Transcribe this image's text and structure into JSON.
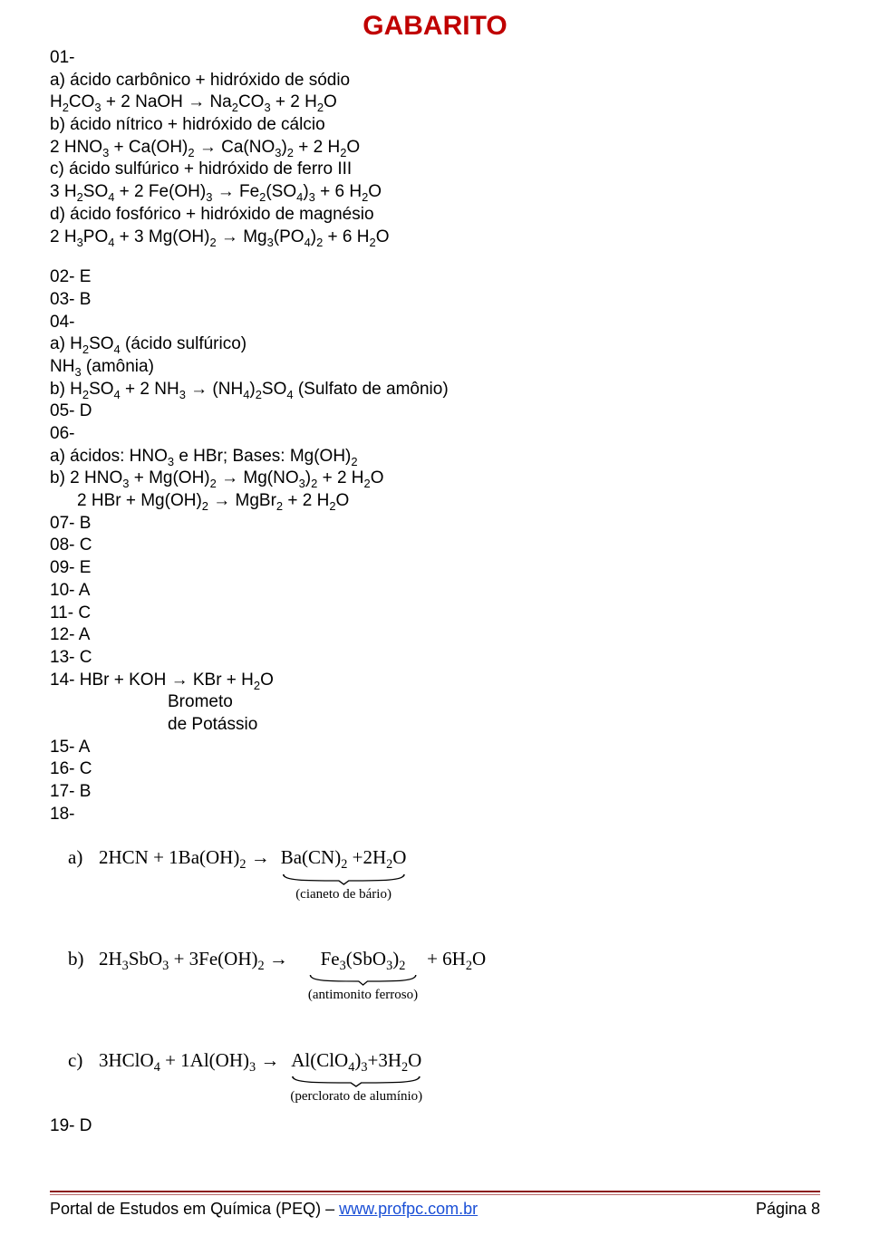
{
  "colors": {
    "title": "#c00000",
    "body_text": "#000000",
    "rule_top": "#8b1a1a",
    "rule_bottom": "#b86a6a",
    "link": "#1a4fd6",
    "background": "#ffffff"
  },
  "title": "GABARITO",
  "q01": {
    "num": "01-",
    "a_text": "a) ácido carbônico + hidróxido de sódio",
    "a_eq": "H₂CO₃ + 2 NaOH → Na₂CO₃ + 2 H₂O",
    "b_text": "b) ácido nítrico + hidróxido de cálcio",
    "b_eq": "2 HNO₃ + Ca(OH)₂ → Ca(NO₃)₂ + 2 H₂O",
    "c_text": "c) ácido sulfúrico + hidróxido de ferro III",
    "c_eq": "3 H₂SO₄ + 2 Fe(OH)₃ → Fe₂(SO₄)₃ + 6 H₂O",
    "d_text": "d) ácido fosfórico + hidróxido de magnésio",
    "d_eq": "2 H₃PO₄ + 3 Mg(OH)₂ → Mg₃(PO₄)₂ + 6 H₂O"
  },
  "q02": "02- E",
  "q03": "03- B",
  "q04": {
    "num": "04-",
    "a1": "a) H₂SO₄ (ácido sulfúrico)",
    "a2": "NH₃ (amônia)",
    "b": "b) H₂SO₄ + 2 NH₃ → (NH₄)₂SO₄ (Sulfato de amônio)"
  },
  "q05": "05- D",
  "q06": {
    "num": "06-",
    "a": "a) ácidos: HNO₃ e HBr; Bases: Mg(OH)₂",
    "b1": "b) 2 HNO₃ + Mg(OH)₂ → Mg(NO₃)₂ + 2 H₂O",
    "b2": "2 HBr + Mg(OH)₂ → MgBr₂ + 2 H₂O"
  },
  "q07": "07- B",
  "q08": "08- C",
  "q09": "09- E",
  "q10": "10- A",
  "q11": "11- C",
  "q12": "12- A",
  "q13": "13- C",
  "q14": {
    "line": "14- HBr + KOH → KBr + H₂O",
    "sub1": "Brometo",
    "sub2": "de Potássio"
  },
  "q15": "15- A",
  "q16": "16- C",
  "q17": "17- B",
  "q18": {
    "num": "18-",
    "a": {
      "label": "a)",
      "left": "2HCN + 1Ba(OH)₂ →",
      "product": "Ba(CN)₂ +2H₂O",
      "caption": "(cianeto de bário)",
      "tail": ""
    },
    "b": {
      "label": "b)",
      "left": "2H₃SbO₃ + 3Fe(OH)₂ →",
      "product": "Fe₃(SbO₃)₂",
      "caption": "(antimonito ferroso)",
      "tail": "+ 6H₂O"
    },
    "c": {
      "label": "c)",
      "left": "3HClO₄ + 1Al(OH)₃ →",
      "product": "Al(ClO₄)₃+3H₂O",
      "caption": "(perclorato de alumínio)",
      "tail": ""
    }
  },
  "q19": "19- D",
  "footer": {
    "left_pre": "Portal de Estudos em Química (PEQ) – ",
    "link": "www.profpc.com.br",
    "right": "Página 8"
  }
}
